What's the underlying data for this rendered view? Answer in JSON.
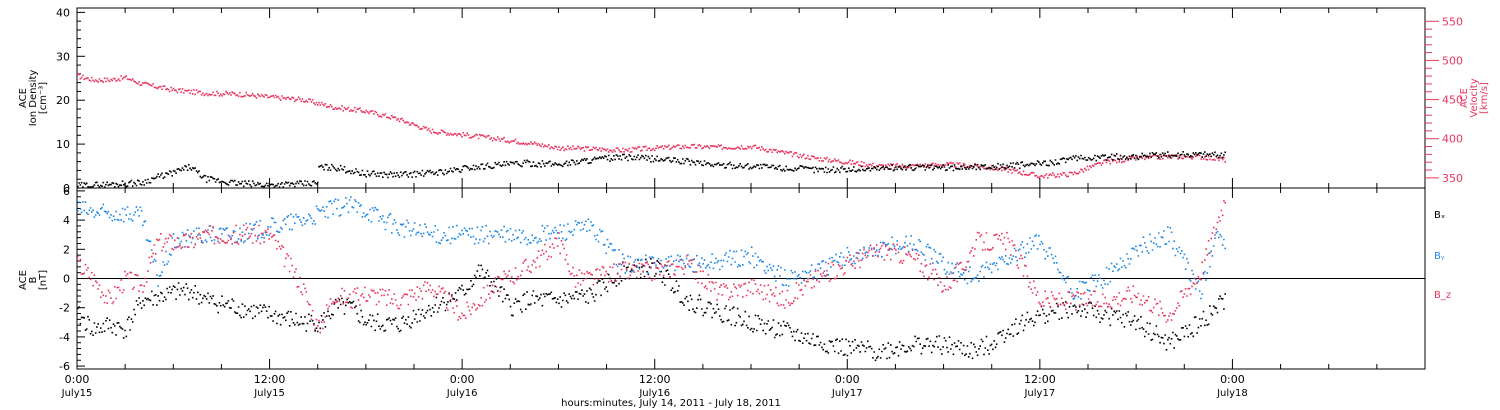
{
  "chart_data": [
    {
      "type": "scatter",
      "left_axis": {
        "label_lines": [
          "ACE",
          "Ion Density",
          "[cm⁻³]"
        ],
        "ylim": [
          0,
          41
        ],
        "ticks": [
          "0",
          "10",
          "20",
          "30",
          "40"
        ]
      },
      "right_axis": {
        "label_lines": [
          "ACE",
          "Velocity",
          "[km/s]"
        ],
        "ylim": [
          337,
          567
        ],
        "ticks": [
          "350",
          "400",
          "450",
          "500",
          "550"
        ],
        "color": "#e8365f"
      },
      "series": [
        {
          "axis": "left",
          "color": "#000000",
          "x": [
            0,
            2,
            4,
            5,
            6,
            7,
            8,
            10,
            12,
            14,
            15,
            15.01,
            16,
            18,
            20,
            22,
            24,
            24.01,
            26,
            28,
            30,
            32,
            34,
            36,
            38,
            40,
            42,
            44,
            46,
            48,
            50,
            52,
            54,
            56,
            58,
            60,
            62,
            64,
            66,
            68,
            70,
            71.5
          ],
          "y": [
            0.5,
            0.8,
            1.2,
            2.5,
            3.5,
            4.8,
            2,
            1,
            0.7,
            0.9,
            1.1,
            4.7,
            4.7,
            3.2,
            3,
            3.4,
            4.2,
            4.5,
            5.2,
            5.6,
            5.4,
            6.4,
            7,
            6.6,
            6,
            5.2,
            5,
            4.5,
            4.2,
            4.2,
            4.5,
            4.7,
            4.6,
            4.8,
            5,
            5.5,
            6.6,
            7,
            7.2,
            7.5,
            7.7,
            7.5
          ]
        },
        {
          "axis": "right",
          "color": "#e8365f",
          "x": [
            0,
            1,
            2,
            3,
            4,
            6,
            8,
            10,
            12,
            14,
            16,
            18,
            20,
            22,
            24,
            26,
            28,
            30,
            32,
            34,
            36,
            38,
            40,
            42,
            44,
            46,
            48,
            50,
            52,
            54,
            56,
            58,
            60,
            62,
            64,
            66,
            68,
            70,
            71.5
          ],
          "y": [
            480,
            475,
            475,
            478,
            470,
            462,
            458,
            457,
            453,
            450,
            440,
            435,
            425,
            410,
            405,
            400,
            395,
            388,
            387,
            385,
            388,
            390,
            389,
            390,
            382,
            375,
            370,
            365,
            365,
            367,
            365,
            360,
            352,
            355,
            370,
            375,
            377,
            377,
            373
          ]
        }
      ]
    },
    {
      "type": "scatter",
      "axis": {
        "label_lines": [
          "ACE",
          "B",
          "[nT]"
        ],
        "ylim": [
          -6.2,
          6.2
        ],
        "ticks": [
          "-6",
          "-4",
          "-2",
          "0",
          "2",
          "4",
          "6"
        ]
      },
      "series": [
        {
          "name": "Bₓ",
          "color": "#000000",
          "x": [
            0,
            1,
            2,
            3,
            4,
            5,
            6,
            7,
            8,
            10,
            12,
            14,
            15,
            15.5,
            16,
            17,
            18,
            20,
            22,
            24,
            25,
            26,
            27,
            28,
            30,
            32,
            34,
            36,
            38,
            40,
            42,
            44,
            46,
            48,
            50,
            52,
            54,
            56,
            57,
            58,
            60,
            62,
            64,
            66,
            68,
            70,
            71.5
          ],
          "y": [
            -2.5,
            -3.5,
            -3.2,
            -3.5,
            -1.5,
            -1.3,
            -1,
            -0.8,
            -1.5,
            -2,
            -2.5,
            -3,
            -3,
            -2.8,
            -2,
            -2,
            -3,
            -3.2,
            -2,
            -1,
            0.5,
            -0.5,
            -2,
            -1.5,
            -1.5,
            -1.2,
            0.5,
            0.8,
            -1.5,
            -2.3,
            -3,
            -3.6,
            -4.3,
            -4.8,
            -5,
            -4.5,
            -4.6,
            -5,
            -4.4,
            -3.5,
            -2.5,
            -2,
            -2.5,
            -3,
            -4.5,
            -3,
            -1.5
          ]
        },
        {
          "name": "Bᵧ",
          "color": "#1e87e5",
          "x": [
            0,
            1,
            2,
            3,
            4,
            5,
            6,
            7,
            8,
            10,
            12,
            14,
            16,
            17,
            18,
            20,
            22,
            24,
            26,
            28,
            30,
            32,
            34,
            36,
            38,
            40,
            42,
            44,
            46,
            48,
            50,
            52,
            54,
            56,
            58,
            60,
            62,
            64,
            66,
            68,
            70,
            71,
            71.5
          ],
          "y": [
            4.8,
            4.5,
            4.4,
            4.5,
            4.2,
            0,
            2.5,
            2.8,
            3,
            3,
            3.5,
            4,
            4.8,
            5,
            4.7,
            3.5,
            3,
            3,
            3,
            2.8,
            3.2,
            3.5,
            1,
            1,
            1,
            1.2,
            1.5,
            0,
            0.5,
            1.5,
            2,
            2.5,
            1,
            0,
            1.5,
            2.5,
            -1,
            0,
            2,
            3,
            -1,
            3.5,
            2
          ]
        },
        {
          "name": "B_z",
          "color": "#e8365f",
          "x": [
            0,
            1,
            2,
            3,
            4,
            5,
            6,
            7,
            8,
            10,
            12,
            14,
            15,
            16,
            17,
            18,
            20,
            22,
            24,
            26,
            28,
            30,
            31,
            32,
            34,
            36,
            38,
            40,
            42,
            44,
            46,
            48,
            50,
            52,
            54,
            55,
            56,
            58,
            60,
            62,
            64,
            66,
            68,
            70,
            71.5
          ],
          "y": [
            1,
            0,
            -1.5,
            0,
            -0.5,
            2.5,
            2.5,
            2.5,
            3,
            3,
            3,
            -0.5,
            -3.5,
            -1,
            -1.5,
            -1,
            -1.5,
            -0.5,
            -2.5,
            -0.5,
            0.8,
            2.5,
            0,
            0,
            0.5,
            0.5,
            1,
            -1,
            -0.5,
            -1.5,
            0,
            1,
            2,
            1.5,
            -0.5,
            0.5,
            2.5,
            2.5,
            -1.5,
            -1.5,
            -1.5,
            -1,
            -2.5,
            0.5,
            5.5
          ]
        }
      ]
    }
  ],
  "x_axis": {
    "range_hours": [
      0,
      84
    ],
    "major_ticks": [
      0,
      12,
      24,
      36,
      48,
      60,
      72
    ],
    "tick_labels": [
      "0:00",
      "12:00",
      "0:00",
      "12:00",
      "0:00",
      "12:00",
      "0:00"
    ],
    "date_labels": [
      "July15",
      "July15",
      "July16",
      "July16",
      "July17",
      "July17",
      "July18"
    ],
    "label": "hours:minutes, July 14, 2011 - July 18, 2011"
  },
  "legend": [
    {
      "text": "Bₓ",
      "color": "#000000"
    },
    {
      "text": "Bᵧ",
      "color": "#1e87e5"
    },
    {
      "text": "B_z",
      "color": "#e8365f"
    }
  ]
}
